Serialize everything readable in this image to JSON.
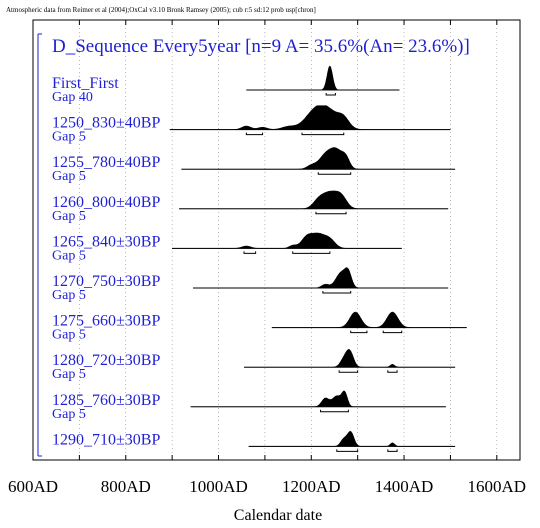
{
  "credit": "Atmospheric data from Reimer et al (2004);OxCal v3.10 Bronk Ramsey (2005); cub r:5 sd:12 prob usp[chron]",
  "colors": {
    "label": "#1f1fd6",
    "ink": "#000000"
  },
  "chart_data": {
    "type": "area",
    "title": "D_Sequence Every5year [n=9 A= 35.6%(An= 23.6%)]",
    "xlabel": "Calendar date",
    "xlim": [
      600,
      1650
    ],
    "ticks": [
      "600AD",
      "800AD",
      "1000AD",
      "1200AD",
      "1400AD",
      "1600AD"
    ],
    "tick_values": [
      600,
      800,
      1000,
      1200,
      1400,
      1600
    ],
    "grid": true,
    "rows": [
      {
        "label": "First_First",
        "gap": "Gap 40",
        "prior": [
          1060,
          1390
        ],
        "peaks": [
          [
            1240,
            6,
            1.0
          ]
        ],
        "ranges": [
          [
            1232,
            1252
          ]
        ]
      },
      {
        "label": "1250_830±40BP",
        "gap": "Gap 5",
        "prior": [
          895,
          1500
        ],
        "peaks": [
          [
            1060,
            10,
            0.15
          ],
          [
            1095,
            10,
            0.1
          ],
          [
            1150,
            14,
            0.12
          ],
          [
            1205,
            22,
            0.55
          ],
          [
            1235,
            24,
            0.75
          ],
          [
            1270,
            12,
            0.35
          ]
        ],
        "ranges": [
          [
            1060,
            1095
          ],
          [
            1180,
            1270
          ]
        ]
      },
      {
        "label": "1255_780±40BP",
        "gap": "Gap 5",
        "prior": [
          920,
          1510
        ],
        "peaks": [
          [
            1200,
            10,
            0.15
          ],
          [
            1230,
            14,
            0.55
          ],
          [
            1255,
            14,
            0.75
          ],
          [
            1275,
            8,
            0.35
          ]
        ],
        "ranges": [
          [
            1215,
            1285
          ]
        ]
      },
      {
        "label": "1260_800±40BP",
        "gap": "Gap 5",
        "prior": [
          915,
          1495
        ],
        "peaks": [
          [
            1215,
            12,
            0.3
          ],
          [
            1240,
            16,
            0.65
          ],
          [
            1265,
            12,
            0.45
          ]
        ],
        "ranges": [
          [
            1210,
            1275
          ]
        ]
      },
      {
        "label": "1265_840±30BP",
        "gap": "Gap 5",
        "prior": [
          900,
          1395
        ],
        "peaks": [
          [
            1060,
            10,
            0.1
          ],
          [
            1160,
            8,
            0.12
          ],
          [
            1190,
            12,
            0.45
          ],
          [
            1215,
            14,
            0.55
          ],
          [
            1240,
            12,
            0.35
          ]
        ],
        "ranges": [
          [
            1055,
            1080
          ],
          [
            1160,
            1240
          ]
        ]
      },
      {
        "label": "1270_750±30BP",
        "gap": "Gap 5",
        "prior": [
          945,
          1495
        ],
        "peaks": [
          [
            1230,
            8,
            0.15
          ],
          [
            1265,
            12,
            0.65
          ],
          [
            1280,
            7,
            0.5
          ]
        ],
        "ranges": [
          [
            1225,
            1285
          ]
        ]
      },
      {
        "label": "1275_660±30BP",
        "gap": "Gap 5",
        "prior": [
          1115,
          1535
        ],
        "peaks": [
          [
            1295,
            12,
            0.65
          ],
          [
            1375,
            12,
            0.65
          ]
        ],
        "ranges": [
          [
            1285,
            1320
          ],
          [
            1355,
            1395
          ]
        ]
      },
      {
        "label": "1280_720±30BP",
        "gap": "Gap 5",
        "prior": [
          1055,
          1510
        ],
        "peaks": [
          [
            1270,
            8,
            0.3
          ],
          [
            1283,
            8,
            0.65
          ],
          [
            1375,
            5,
            0.12
          ]
        ],
        "ranges": [
          [
            1260,
            1300
          ],
          [
            1365,
            1385
          ]
        ]
      },
      {
        "label": "1285_760±30BP",
        "gap": "Gap 5",
        "prior": [
          940,
          1490
        ],
        "peaks": [
          [
            1230,
            8,
            0.35
          ],
          [
            1255,
            10,
            0.45
          ],
          [
            1272,
            6,
            0.55
          ]
        ],
        "ranges": [
          [
            1220,
            1280
          ]
        ]
      },
      {
        "label": "1290_710±30BP",
        "gap": "",
        "prior": [
          1065,
          1510
        ],
        "peaks": [
          [
            1270,
            7,
            0.3
          ],
          [
            1285,
            7,
            0.6
          ],
          [
            1375,
            5,
            0.15
          ]
        ],
        "ranges": [
          [
            1255,
            1300
          ],
          [
            1365,
            1385
          ]
        ]
      }
    ]
  }
}
